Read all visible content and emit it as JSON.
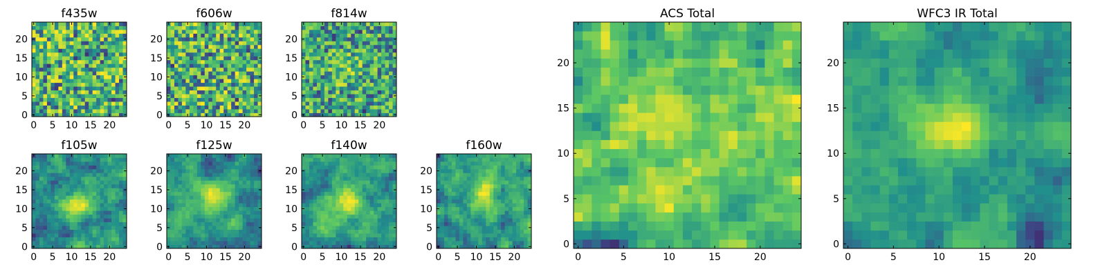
{
  "figure": {
    "colormap": "viridis",
    "colormap_stops": [
      "#440154",
      "#3b528b",
      "#21908c",
      "#5dc863",
      "#fde725"
    ]
  },
  "chart_data": [
    {
      "type": "heatmap",
      "title": "f435w",
      "grid_size": [
        25,
        25
      ],
      "xlim": [
        -0.5,
        24.5
      ],
      "ylim": [
        -0.5,
        24.5
      ],
      "x_ticks": [
        "0",
        "5",
        "10",
        "15",
        "20"
      ],
      "y_ticks": [
        "0",
        "5",
        "10",
        "15",
        "20"
      ],
      "pattern": "uniform noise, no central source",
      "seed": 11,
      "smooth": 0,
      "blob": null
    },
    {
      "type": "heatmap",
      "title": "f606w",
      "grid_size": [
        25,
        25
      ],
      "xlim": [
        -0.5,
        24.5
      ],
      "ylim": [
        -0.5,
        24.5
      ],
      "x_ticks": [
        "0",
        "5",
        "10",
        "15",
        "20"
      ],
      "y_ticks": [
        "0",
        "5",
        "10",
        "15",
        "20"
      ],
      "pattern": "uniform noise, no central source",
      "seed": 23,
      "smooth": 0,
      "blob": null
    },
    {
      "type": "heatmap",
      "title": "f814w",
      "grid_size": [
        25,
        25
      ],
      "xlim": [
        -0.5,
        24.5
      ],
      "ylim": [
        -0.5,
        24.5
      ],
      "x_ticks": [
        "0",
        "5",
        "10",
        "15",
        "20"
      ],
      "y_ticks": [
        "0",
        "5",
        "10",
        "15",
        "20"
      ],
      "pattern": "noise with faint bright core",
      "seed": 37,
      "smooth": 0,
      "blob": {
        "cx": 11,
        "cy": 12,
        "sigma": 3,
        "amp": 0.25
      }
    },
    {
      "type": "heatmap",
      "title": "f105w",
      "grid_size": [
        25,
        25
      ],
      "xlim": [
        -0.5,
        24.5
      ],
      "ylim": [
        -0.5,
        24.5
      ],
      "x_ticks": [
        "0",
        "5",
        "10",
        "15",
        "20"
      ],
      "y_ticks": [
        "0",
        "5",
        "10",
        "15",
        "20"
      ],
      "pattern": "correlated noise with central source",
      "seed": 41,
      "smooth": 2,
      "blob": {
        "cx": 12,
        "cy": 11,
        "sigma": 3,
        "amp": 0.4
      }
    },
    {
      "type": "heatmap",
      "title": "f125w",
      "grid_size": [
        25,
        25
      ],
      "xlim": [
        -0.5,
        24.5
      ],
      "ylim": [
        -0.5,
        24.5
      ],
      "x_ticks": [
        "0",
        "5",
        "10",
        "15",
        "20"
      ],
      "y_ticks": [
        "0",
        "5",
        "10",
        "15",
        "20"
      ],
      "pattern": "correlated noise with central source",
      "seed": 53,
      "smooth": 2,
      "blob": {
        "cx": 12,
        "cy": 13,
        "sigma": 3,
        "amp": 0.4
      }
    },
    {
      "type": "heatmap",
      "title": "f140w",
      "grid_size": [
        25,
        25
      ],
      "xlim": [
        -0.5,
        24.5
      ],
      "ylim": [
        -0.5,
        24.5
      ],
      "x_ticks": [
        "0",
        "5",
        "10",
        "15",
        "20"
      ],
      "y_ticks": [
        "0",
        "5",
        "10",
        "15",
        "20"
      ],
      "pattern": "correlated noise with central source",
      "seed": 67,
      "smooth": 2,
      "blob": {
        "cx": 11,
        "cy": 12,
        "sigma": 3,
        "amp": 0.4
      }
    },
    {
      "type": "heatmap",
      "title": "f160w",
      "grid_size": [
        25,
        25
      ],
      "xlim": [
        -0.5,
        24.5
      ],
      "ylim": [
        -0.5,
        24.5
      ],
      "x_ticks": [
        "0",
        "5",
        "10",
        "15",
        "20"
      ],
      "y_ticks": [
        "0",
        "5",
        "10",
        "15",
        "20"
      ],
      "pattern": "correlated noise with central source",
      "seed": 79,
      "smooth": 2,
      "blob": {
        "cx": 12,
        "cy": 14,
        "sigma": 3,
        "amp": 0.35
      }
    },
    {
      "type": "heatmap",
      "title": "ACS Total",
      "grid_size": [
        25,
        25
      ],
      "xlim": [
        -0.5,
        24.5
      ],
      "ylim": [
        -0.5,
        24.5
      ],
      "x_ticks": [
        "0",
        "5",
        "10",
        "15",
        "20"
      ],
      "y_ticks": [
        "0",
        "5",
        "10",
        "15",
        "20"
      ],
      "pattern": "high-level noise, mostly green-yellow",
      "seed": 97,
      "smooth": 1,
      "blob": {
        "cx": 9,
        "cy": 14,
        "sigma": 4,
        "amp": 0.15
      }
    },
    {
      "type": "heatmap",
      "title": "WFC3 IR Total",
      "grid_size": [
        25,
        25
      ],
      "xlim": [
        -0.5,
        24.5
      ],
      "ylim": [
        -0.5,
        24.5
      ],
      "x_ticks": [
        "0",
        "5",
        "10",
        "15",
        "20"
      ],
      "y_ticks": [
        "0",
        "5",
        "10",
        "15",
        "20"
      ],
      "pattern": "smooth background with bright central source",
      "seed": 131,
      "smooth": 2,
      "blob": {
        "cx": 12,
        "cy": 13,
        "sigma": 2.5,
        "amp": 0.55
      }
    }
  ]
}
